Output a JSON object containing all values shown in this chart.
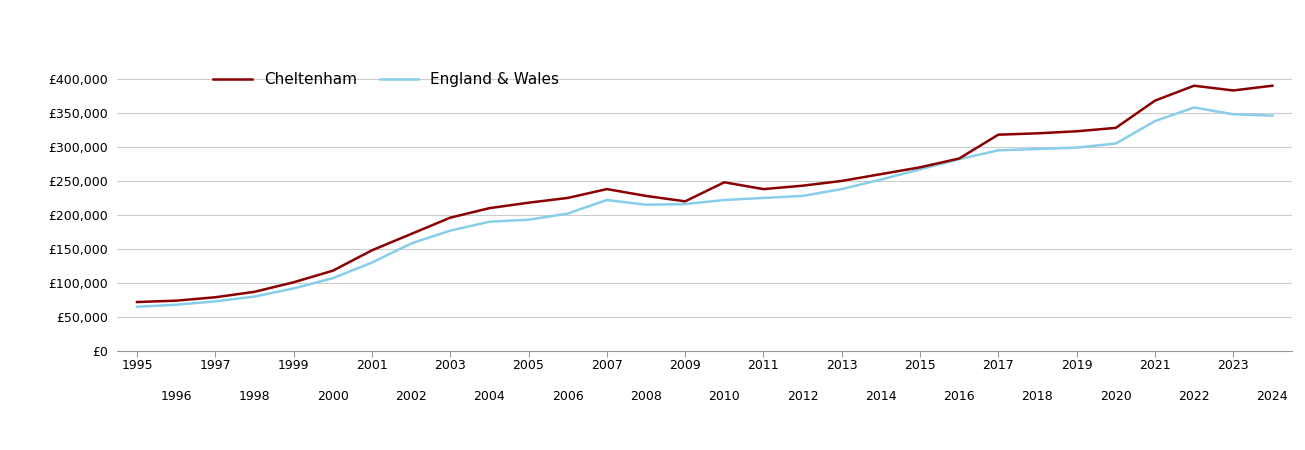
{
  "cheltenham": {
    "years": [
      1995,
      1996,
      1997,
      1998,
      1999,
      2000,
      2001,
      2002,
      2003,
      2004,
      2005,
      2006,
      2007,
      2008,
      2009,
      2010,
      2011,
      2012,
      2013,
      2014,
      2015,
      2016,
      2017,
      2018,
      2019,
      2020,
      2021,
      2022,
      2023,
      2024
    ],
    "values": [
      72000,
      74000,
      79000,
      87000,
      101000,
      118000,
      148000,
      172000,
      196000,
      210000,
      218000,
      225000,
      238000,
      228000,
      220000,
      248000,
      238000,
      243000,
      250000,
      260000,
      270000,
      283000,
      318000,
      320000,
      323000,
      328000,
      368000,
      390000,
      383000,
      390000
    ]
  },
  "england_wales": {
    "years": [
      1995,
      1996,
      1997,
      1998,
      1999,
      2000,
      2001,
      2002,
      2003,
      2004,
      2005,
      2006,
      2007,
      2008,
      2009,
      2010,
      2011,
      2012,
      2013,
      2014,
      2015,
      2016,
      2017,
      2018,
      2019,
      2020,
      2021,
      2022,
      2023,
      2024
    ],
    "values": [
      65000,
      68000,
      73000,
      80000,
      92000,
      107000,
      130000,
      158000,
      177000,
      190000,
      193000,
      202000,
      222000,
      215000,
      216000,
      222000,
      225000,
      228000,
      238000,
      252000,
      267000,
      282000,
      295000,
      297000,
      299000,
      305000,
      338000,
      358000,
      348000,
      346000
    ]
  },
  "cheltenham_color": "#8b0000",
  "england_wales_color": "#87ceeb",
  "background_color": "#ffffff",
  "ylim": [
    0,
    430000
  ],
  "yticks": [
    0,
    50000,
    100000,
    150000,
    200000,
    250000,
    300000,
    350000,
    400000
  ],
  "xlim": [
    1994.5,
    2024.5
  ],
  "odd_years": [
    1995,
    1997,
    1999,
    2001,
    2003,
    2005,
    2007,
    2009,
    2011,
    2013,
    2015,
    2017,
    2019,
    2021,
    2023
  ],
  "even_years": [
    1996,
    1998,
    2000,
    2002,
    2004,
    2006,
    2008,
    2010,
    2012,
    2014,
    2016,
    2018,
    2020,
    2022,
    2024
  ],
  "legend_labels": [
    "Cheltenham",
    "England & Wales"
  ],
  "line_width": 1.8,
  "grid_color": "#cccccc",
  "tick_color": "#999999",
  "label_fontsize": 9,
  "legend_fontsize": 11
}
